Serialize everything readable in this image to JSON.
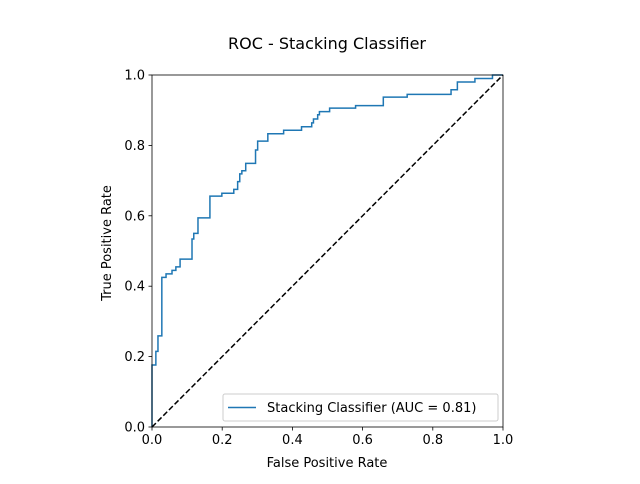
{
  "chart_data": {
    "type": "line",
    "title": "ROC - Stacking Classifier",
    "xlabel": "False Positive Rate",
    "ylabel": "True Positive Rate",
    "xlim": [
      0.0,
      1.0
    ],
    "ylim": [
      0.0,
      1.0
    ],
    "xticks": [
      0.0,
      0.2,
      0.4,
      0.6,
      0.8,
      1.0
    ],
    "yticks": [
      0.0,
      0.2,
      0.4,
      0.6,
      0.8,
      1.0
    ],
    "xtick_labels": [
      "0.0",
      "0.2",
      "0.4",
      "0.6",
      "0.8",
      "1.0"
    ],
    "ytick_labels": [
      "0.0",
      "0.2",
      "0.4",
      "0.6",
      "0.8",
      "1.0"
    ],
    "grid": false,
    "legend": {
      "position": "lower-right",
      "entries": [
        "Stacking Classifier (AUC = 0.81)"
      ]
    },
    "series": [
      {
        "name": "Stacking Classifier (AUC = 0.81)",
        "style": "solid",
        "color": "#1f77b4",
        "x": [
          0.0,
          0.0,
          0.0,
          0.0,
          0.011,
          0.011,
          0.017,
          0.017,
          0.028,
          0.028,
          0.04,
          0.04,
          0.057,
          0.057,
          0.068,
          0.068,
          0.08,
          0.08,
          0.085,
          0.085,
          0.114,
          0.114,
          0.119,
          0.119,
          0.131,
          0.131,
          0.165,
          0.165,
          0.199,
          0.199,
          0.233,
          0.233,
          0.244,
          0.244,
          0.25,
          0.25,
          0.256,
          0.256,
          0.267,
          0.267,
          0.295,
          0.295,
          0.301,
          0.301,
          0.33,
          0.33,
          0.375,
          0.375,
          0.426,
          0.426,
          0.455,
          0.455,
          0.46,
          0.46,
          0.472,
          0.472,
          0.477,
          0.477,
          0.506,
          0.506,
          0.58,
          0.58,
          0.659,
          0.659,
          0.727,
          0.727,
          0.795,
          0.795,
          0.852,
          0.852,
          0.87,
          0.87,
          0.92,
          0.92,
          0.97,
          0.97,
          1.0
        ],
        "y": [
          0.0,
          0.05,
          0.1,
          0.176,
          0.176,
          0.215,
          0.215,
          0.259,
          0.259,
          0.425,
          0.425,
          0.435,
          0.435,
          0.445,
          0.445,
          0.455,
          0.455,
          0.477,
          0.477,
          0.477,
          0.477,
          0.534,
          0.534,
          0.55,
          0.55,
          0.594,
          0.594,
          0.656,
          0.656,
          0.664,
          0.664,
          0.675,
          0.675,
          0.697,
          0.697,
          0.719,
          0.719,
          0.728,
          0.728,
          0.749,
          0.749,
          0.787,
          0.787,
          0.812,
          0.812,
          0.833,
          0.833,
          0.843,
          0.843,
          0.853,
          0.853,
          0.864,
          0.864,
          0.875,
          0.875,
          0.887,
          0.887,
          0.896,
          0.896,
          0.906,
          0.906,
          0.913,
          0.913,
          0.937,
          0.937,
          0.945,
          0.945,
          0.945,
          0.945,
          0.958,
          0.958,
          0.98,
          0.98,
          0.99,
          0.99,
          1.0,
          1.0
        ]
      },
      {
        "style": "dashed",
        "color": "#000000",
        "x": [
          0.0,
          1.0
        ],
        "y": [
          0.0,
          1.0
        ]
      }
    ]
  }
}
